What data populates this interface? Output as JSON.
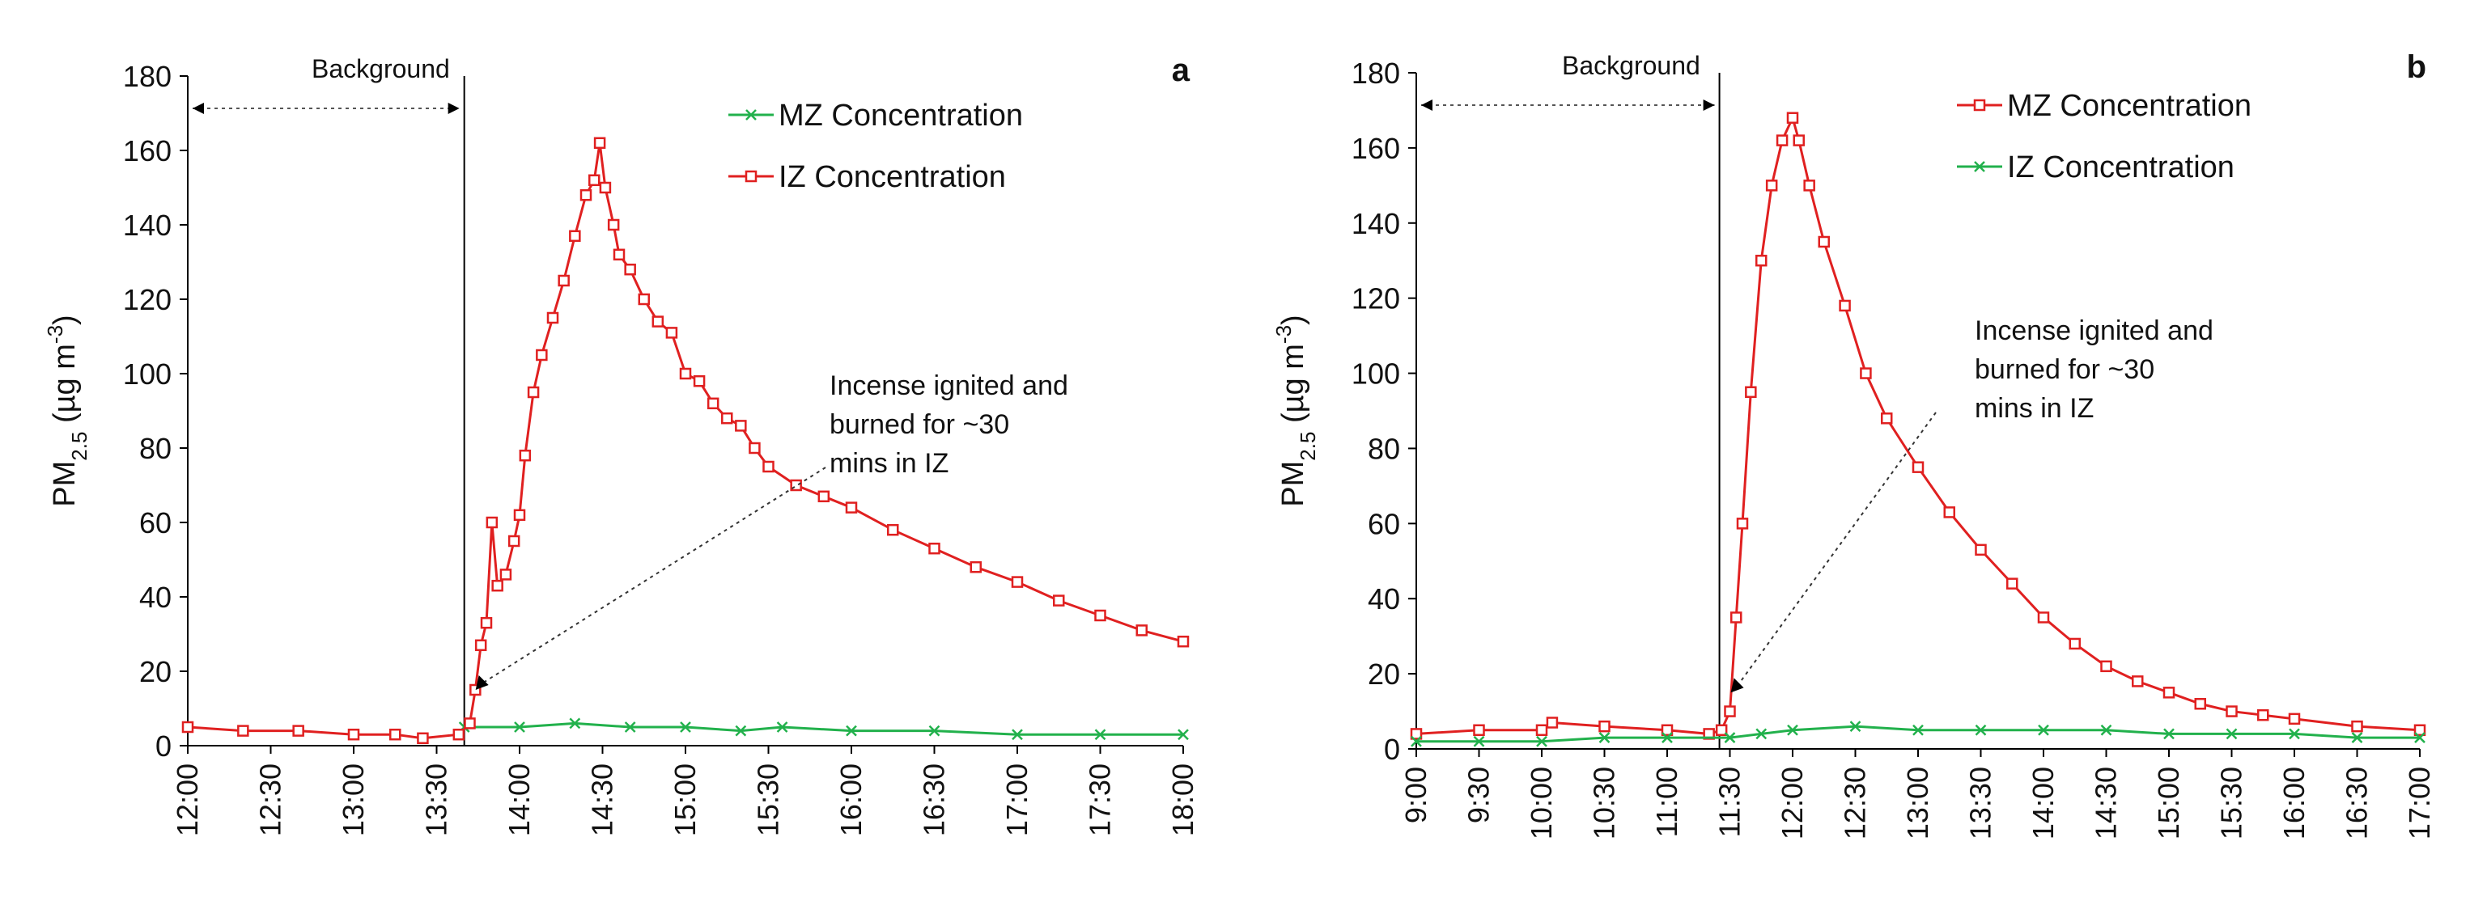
{
  "chart_data": [
    {
      "panel": "a",
      "type": "line",
      "ylabel": {
        "main": "PM",
        "sub": "2.5",
        "units": " (µg m",
        "sup": "-3",
        "close": ")"
      },
      "ylim": [
        0,
        180
      ],
      "yticks": [
        0,
        20,
        40,
        60,
        80,
        100,
        120,
        140,
        160,
        180
      ],
      "xlim": [
        "12:00",
        "18:00"
      ],
      "xticks": [
        "12:00",
        "12:30",
        "13:00",
        "13:30",
        "14:00",
        "14:30",
        "15:00",
        "15:30",
        "16:00",
        "16:30",
        "17:00",
        "17:30",
        "18:00"
      ],
      "background_label": "Background",
      "background_range": [
        "12:00",
        "13:40"
      ],
      "ignition_time": "13:40",
      "annotation": [
        "Incense ignited and",
        "burned for ~30",
        "mins in IZ"
      ],
      "legend_position": "top-right",
      "series": [
        {
          "name": "MZ Concentration",
          "color": "#22b14c",
          "marker": "x",
          "points": [
            [
              "13:40",
              5
            ],
            [
              "14:00",
              5
            ],
            [
              "14:20",
              6
            ],
            [
              "14:40",
              5
            ],
            [
              "15:00",
              5
            ],
            [
              "15:20",
              4
            ],
            [
              "15:35",
              5
            ],
            [
              "16:00",
              4
            ],
            [
              "16:30",
              4
            ],
            [
              "17:00",
              3
            ],
            [
              "17:30",
              3
            ],
            [
              "18:00",
              3
            ]
          ]
        },
        {
          "name": "IZ Concentration",
          "color": "#e02020",
          "marker": "square",
          "points": [
            [
              "12:00",
              5
            ],
            [
              "12:20",
              4
            ],
            [
              "12:40",
              4
            ],
            [
              "13:00",
              3
            ],
            [
              "13:15",
              3
            ],
            [
              "13:25",
              2
            ],
            [
              "13:38",
              3
            ],
            [
              "13:42",
              6
            ],
            [
              "13:44",
              15
            ],
            [
              "13:46",
              27
            ],
            [
              "13:48",
              33
            ],
            [
              "13:50",
              60
            ],
            [
              "13:52",
              43
            ],
            [
              "13:55",
              46
            ],
            [
              "13:58",
              55
            ],
            [
              "14:00",
              62
            ],
            [
              "14:02",
              78
            ],
            [
              "14:05",
              95
            ],
            [
              "14:08",
              105
            ],
            [
              "14:12",
              115
            ],
            [
              "14:16",
              125
            ],
            [
              "14:20",
              137
            ],
            [
              "14:24",
              148
            ],
            [
              "14:27",
              152
            ],
            [
              "14:29",
              162
            ],
            [
              "14:31",
              150
            ],
            [
              "14:34",
              140
            ],
            [
              "14:36",
              132
            ],
            [
              "14:40",
              128
            ],
            [
              "14:45",
              120
            ],
            [
              "14:50",
              114
            ],
            [
              "14:55",
              111
            ],
            [
              "15:00",
              100
            ],
            [
              "15:05",
              98
            ],
            [
              "15:10",
              92
            ],
            [
              "15:15",
              88
            ],
            [
              "15:20",
              86
            ],
            [
              "15:25",
              80
            ],
            [
              "15:30",
              75
            ],
            [
              "15:40",
              70
            ],
            [
              "15:50",
              67
            ],
            [
              "16:00",
              64
            ],
            [
              "16:15",
              58
            ],
            [
              "16:30",
              53
            ],
            [
              "16:45",
              48
            ],
            [
              "17:00",
              44
            ],
            [
              "17:15",
              39
            ],
            [
              "17:30",
              35
            ],
            [
              "17:45",
              31
            ],
            [
              "18:00",
              28
            ]
          ]
        }
      ]
    },
    {
      "panel": "b",
      "type": "line",
      "ylabel": {
        "main": "PM",
        "sub": "2.5",
        "units": " (µg m",
        "sup": "-3",
        "close": ")"
      },
      "ylim": [
        0,
        180
      ],
      "yticks": [
        0,
        20,
        40,
        60,
        80,
        100,
        120,
        140,
        160,
        180
      ],
      "xlim": [
        "9:00",
        "17:00"
      ],
      "xticks": [
        "9:00",
        "9:30",
        "10:00",
        "10:30",
        "11:00",
        "11:30",
        "12:00",
        "12:30",
        "13:00",
        "13:30",
        "14:00",
        "14:30",
        "15:00",
        "15:30",
        "16:00",
        "16:30",
        "17:00"
      ],
      "background_label": "Background",
      "background_range": [
        "9:00",
        "11:25"
      ],
      "ignition_time": "11:25",
      "annotation": [
        "Incense ignited and",
        "burned for ~30",
        "mins in IZ"
      ],
      "legend_position": "top-right",
      "series": [
        {
          "name": "MZ Concentration",
          "color": "#e02020",
          "marker": "square",
          "points": [
            [
              "9:00",
              4
            ],
            [
              "9:30",
              5
            ],
            [
              "10:00",
              5
            ],
            [
              "10:05",
              7
            ],
            [
              "10:30",
              6
            ],
            [
              "11:00",
              5
            ],
            [
              "11:20",
              4
            ],
            [
              "11:26",
              5
            ],
            [
              "11:30",
              10
            ],
            [
              "11:33",
              35
            ],
            [
              "11:36",
              60
            ],
            [
              "11:40",
              95
            ],
            [
              "11:45",
              130
            ],
            [
              "11:50",
              150
            ],
            [
              "11:55",
              162
            ],
            [
              "12:00",
              168
            ],
            [
              "12:03",
              162
            ],
            [
              "12:08",
              150
            ],
            [
              "12:15",
              135
            ],
            [
              "12:25",
              118
            ],
            [
              "12:35",
              100
            ],
            [
              "12:45",
              88
            ],
            [
              "13:00",
              75
            ],
            [
              "13:15",
              63
            ],
            [
              "13:30",
              53
            ],
            [
              "13:45",
              44
            ],
            [
              "14:00",
              35
            ],
            [
              "14:15",
              28
            ],
            [
              "14:30",
              22
            ],
            [
              "14:45",
              18
            ],
            [
              "15:00",
              15
            ],
            [
              "15:15",
              12
            ],
            [
              "15:30",
              10
            ],
            [
              "15:45",
              9
            ],
            [
              "16:00",
              8
            ],
            [
              "16:30",
              6
            ],
            [
              "17:00",
              5
            ]
          ]
        },
        {
          "name": "IZ Concentration",
          "color": "#22b14c",
          "marker": "x",
          "points": [
            [
              "9:00",
              2
            ],
            [
              "9:30",
              2
            ],
            [
              "10:00",
              2
            ],
            [
              "10:30",
              3
            ],
            [
              "11:00",
              3
            ],
            [
              "11:30",
              3
            ],
            [
              "11:45",
              4
            ],
            [
              "12:00",
              5
            ],
            [
              "12:30",
              6
            ],
            [
              "13:00",
              5
            ],
            [
              "13:30",
              5
            ],
            [
              "14:00",
              5
            ],
            [
              "14:30",
              5
            ],
            [
              "15:00",
              4
            ],
            [
              "15:30",
              4
            ],
            [
              "16:00",
              4
            ],
            [
              "16:30",
              3
            ],
            [
              "17:00",
              3
            ]
          ]
        }
      ]
    }
  ]
}
